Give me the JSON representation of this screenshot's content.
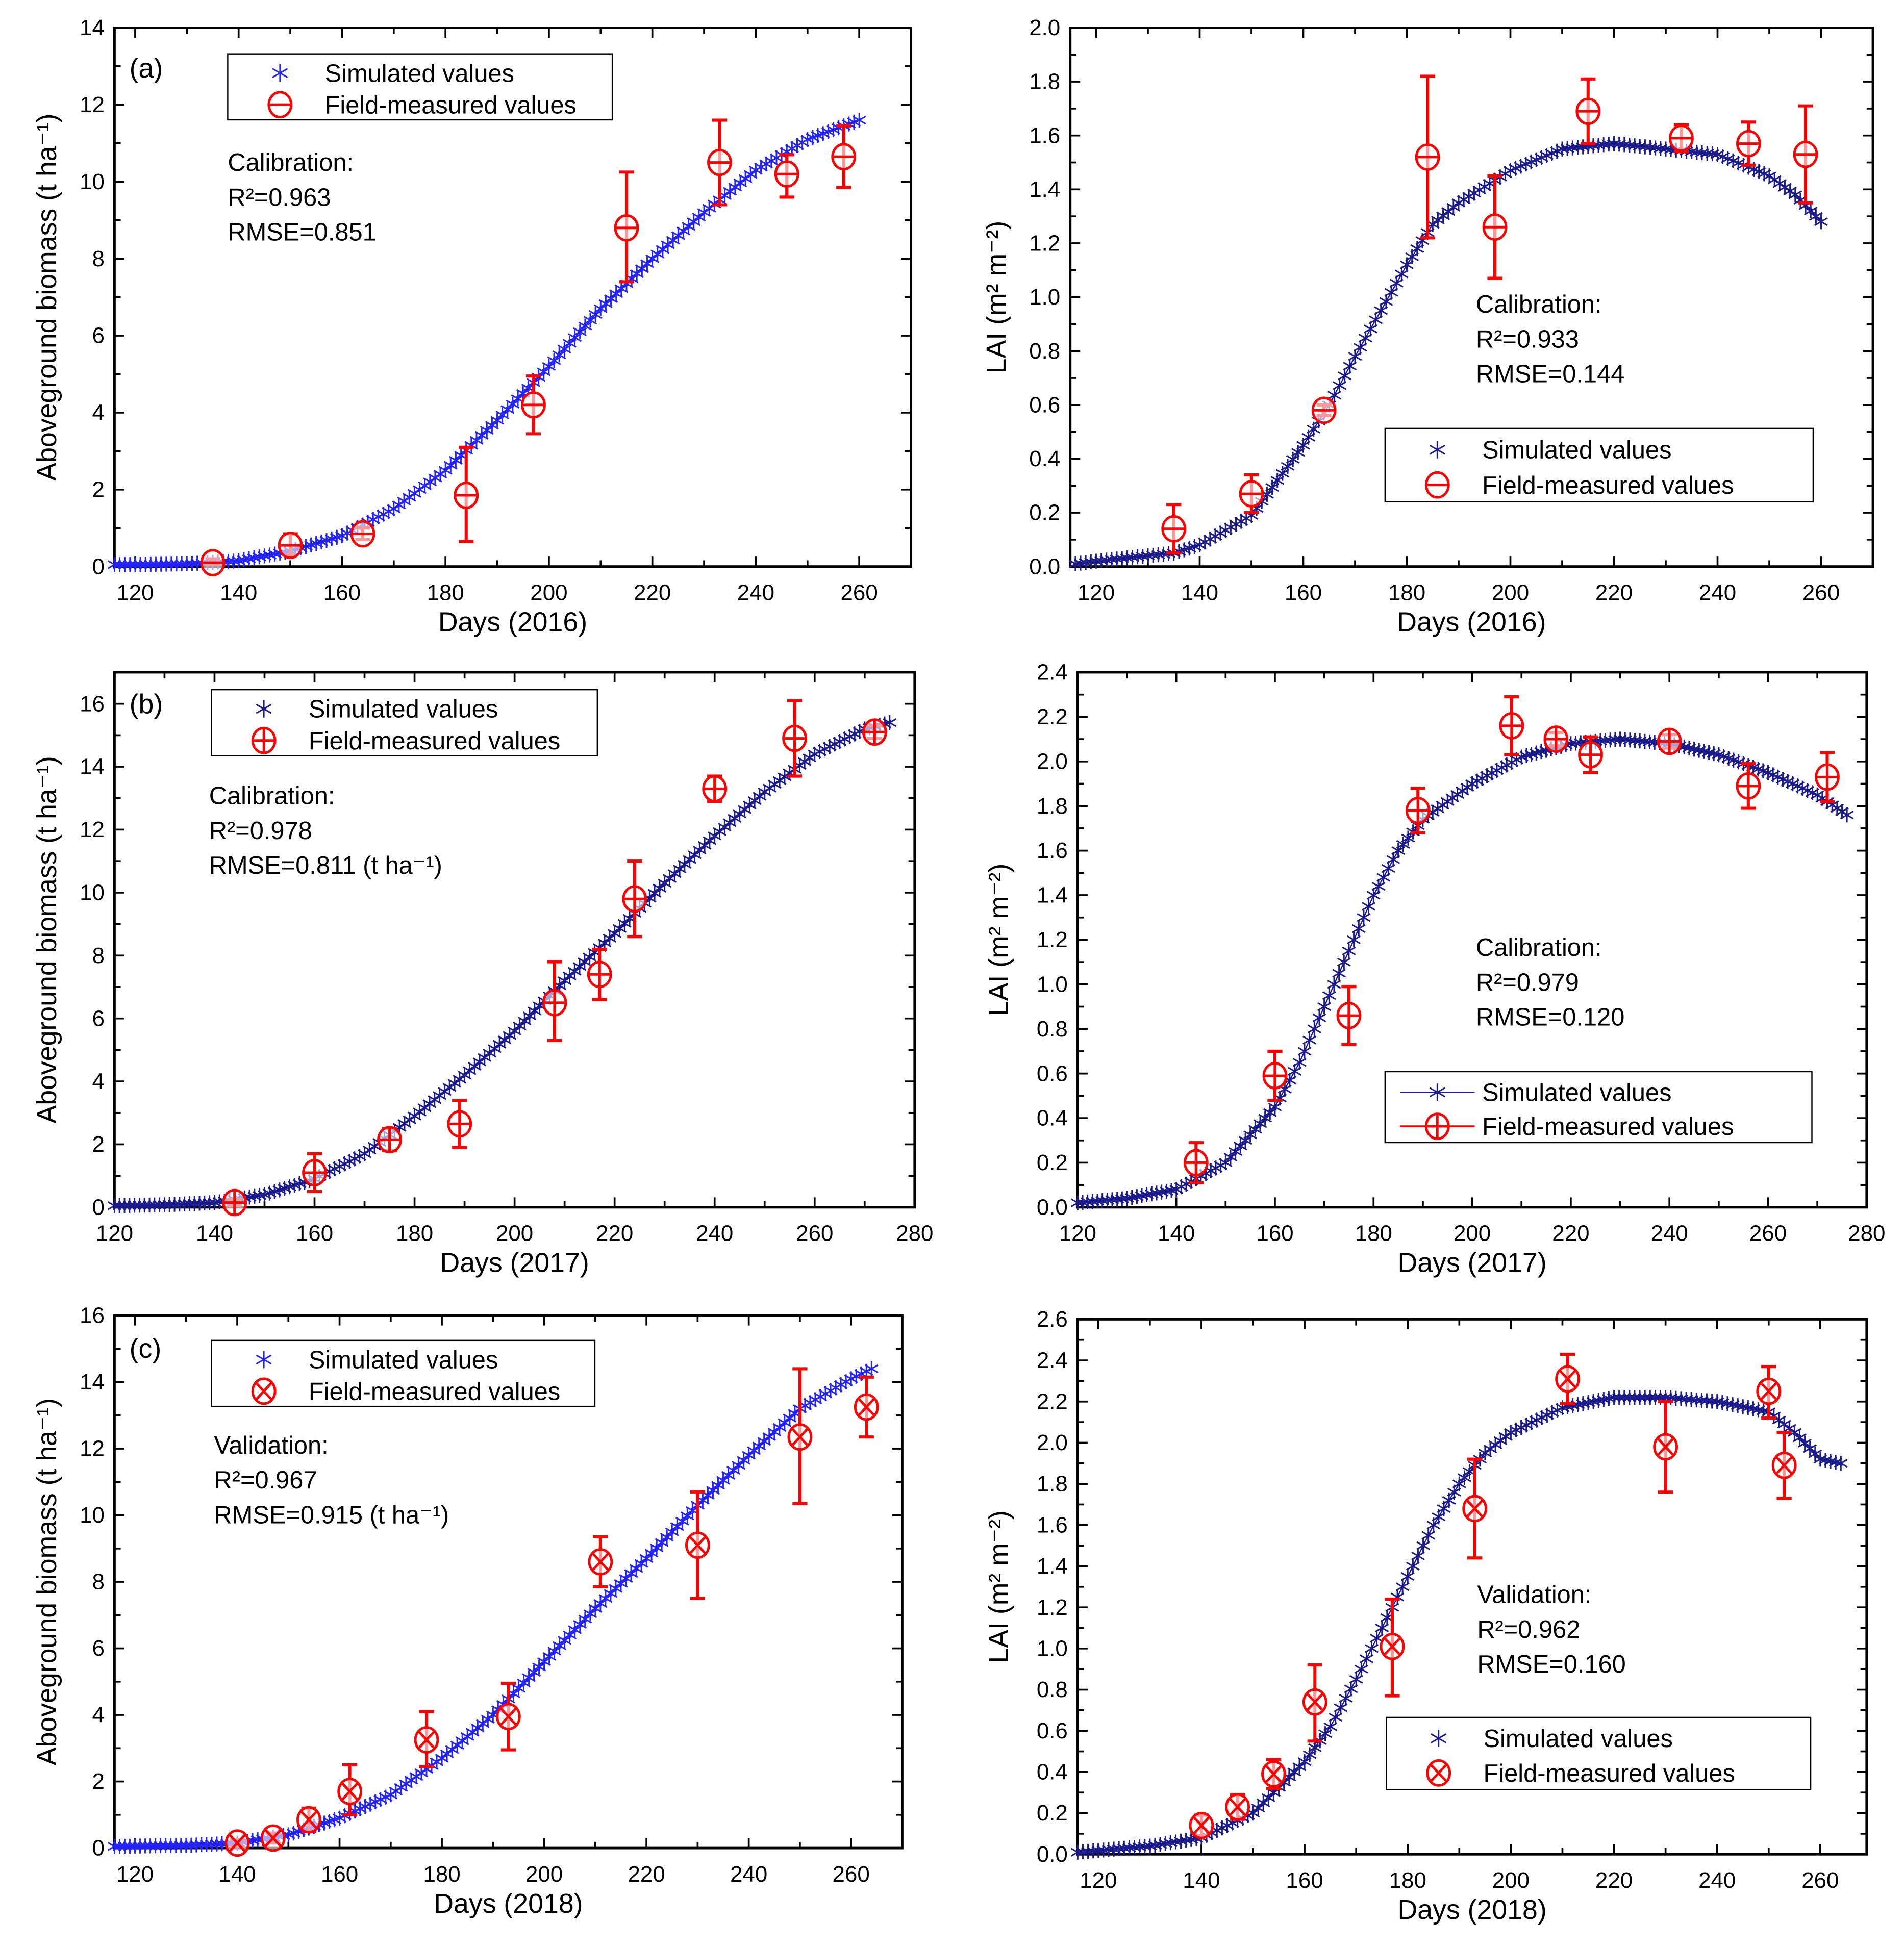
{
  "chart_data": [
    {
      "id": "a-biomass",
      "type": "scatter",
      "panel_label": "(a)",
      "xlabel": "Days (2016)",
      "ylabel": "Aboveground biomass (t ha⁻¹)",
      "xlim": [
        116,
        270
      ],
      "ylim": [
        0,
        14
      ],
      "x_ticks": [
        120,
        140,
        160,
        180,
        200,
        220,
        240,
        260
      ],
      "y_ticks": [
        0,
        2,
        4,
        6,
        8,
        10,
        12,
        14
      ],
      "y_decimals": 0,
      "marker": "circle-hline",
      "sim_color": "#2222ff",
      "obs_color": "#ff0000",
      "legend_line": false,
      "legend_position": "top-left",
      "legend": [
        "Simulated values",
        "Field-measured values"
      ],
      "annotation": [
        "Calibration:",
        "R²=0.963",
        "RMSE=0.851"
      ],
      "simulated": {
        "x": [
          116,
          120,
          130,
          140,
          150,
          160,
          170,
          180,
          190,
          200,
          210,
          220,
          230,
          240,
          250,
          260
        ],
        "y": [
          0.05,
          0.05,
          0.07,
          0.15,
          0.4,
          0.8,
          1.5,
          2.5,
          3.8,
          5.2,
          6.7,
          8.0,
          9.2,
          10.3,
          11.1,
          11.6
        ]
      },
      "measured": {
        "x": [
          135,
          150,
          164,
          184,
          197,
          215,
          233,
          246,
          257
        ],
        "y": [
          0.1,
          0.55,
          0.85,
          1.85,
          4.2,
          8.8,
          10.5,
          10.2,
          10.65
        ],
        "lo": [
          0.05,
          0.3,
          0.7,
          0.65,
          3.45,
          7.4,
          9.4,
          9.6,
          9.85
        ],
        "hi": [
          0.2,
          0.85,
          1.0,
          3.1,
          4.95,
          10.25,
          11.6,
          10.7,
          11.45
        ]
      }
    },
    {
      "id": "a-lai",
      "type": "scatter",
      "panel_label": "",
      "xlabel": "Days (2016)",
      "ylabel": "LAI (m² m⁻²)",
      "xlim": [
        115,
        270
      ],
      "ylim": [
        0,
        2.0
      ],
      "x_ticks": [
        120,
        140,
        160,
        180,
        200,
        220,
        240,
        260
      ],
      "y_ticks": [
        0,
        0.2,
        0.4,
        0.6,
        0.8,
        1.0,
        1.2,
        1.4,
        1.6,
        1.8,
        2.0
      ],
      "y_decimals": 1,
      "marker": "circle-hline",
      "sim_color": "#1a1a8c",
      "obs_color": "#ff0000",
      "legend_line": false,
      "legend_position": "bottom-right",
      "legend": [
        "Simulated values",
        "Field-measured values"
      ],
      "annotation": [
        "Calibration:",
        "R²=0.933",
        "RMSE=0.144"
      ],
      "simulated": {
        "x": [
          116,
          120,
          130,
          135,
          140,
          150,
          160,
          165,
          170,
          175,
          180,
          185,
          190,
          200,
          210,
          220,
          230,
          240,
          250,
          255,
          260
        ],
        "y": [
          0.01,
          0.02,
          0.04,
          0.05,
          0.08,
          0.19,
          0.45,
          0.6,
          0.78,
          0.95,
          1.12,
          1.27,
          1.35,
          1.47,
          1.55,
          1.57,
          1.55,
          1.53,
          1.45,
          1.38,
          1.28
        ]
      },
      "measured": {
        "x": [
          135,
          150,
          164,
          184,
          197,
          215,
          233,
          246,
          257
        ],
        "y": [
          0.14,
          0.27,
          0.58,
          1.52,
          1.26,
          1.69,
          1.59,
          1.57,
          1.53
        ],
        "lo": [
          0.05,
          0.2,
          0.56,
          1.22,
          1.07,
          1.57,
          1.54,
          1.49,
          1.35
        ],
        "hi": [
          0.23,
          0.34,
          0.6,
          1.82,
          1.45,
          1.81,
          1.64,
          1.65,
          1.71
        ]
      }
    },
    {
      "id": "b-biomass",
      "type": "scatter",
      "panel_label": "(b)",
      "xlabel": "Days (2017)",
      "ylabel": "Aboveground biomass (t ha⁻¹)",
      "xlim": [
        120,
        280
      ],
      "ylim": [
        0,
        17
      ],
      "x_ticks": [
        120,
        140,
        160,
        180,
        200,
        220,
        240,
        260,
        280
      ],
      "y_ticks": [
        0,
        2,
        4,
        6,
        8,
        10,
        12,
        14,
        16
      ],
      "y_decimals": 0,
      "marker": "circle-cross",
      "sim_color": "#1a1a8c",
      "obs_color": "#ff0000",
      "legend_line": false,
      "legend_position": "top-left",
      "legend": [
        "Simulated values",
        "Field-measured values"
      ],
      "annotation": [
        "Calibration:",
        "R²=0.978",
        "RMSE=0.811 (t ha⁻¹)"
      ],
      "simulated": {
        "x": [
          120,
          130,
          140,
          150,
          160,
          170,
          180,
          190,
          200,
          210,
          220,
          230,
          240,
          250,
          260,
          270,
          275
        ],
        "y": [
          0.05,
          0.08,
          0.15,
          0.4,
          0.9,
          1.7,
          2.9,
          4.2,
          5.6,
          7.2,
          8.7,
          10.3,
          11.8,
          13.2,
          14.4,
          15.2,
          15.4
        ]
      },
      "measured": {
        "x": [
          144,
          160,
          175,
          189,
          208,
          217,
          224,
          240,
          256,
          272
        ],
        "y": [
          0.15,
          1.1,
          2.15,
          2.65,
          6.5,
          7.4,
          9.8,
          13.3,
          14.9,
          15.1
        ],
        "lo": [
          0.05,
          0.5,
          1.8,
          1.9,
          5.3,
          6.6,
          8.6,
          12.9,
          13.7,
          14.9
        ],
        "hi": [
          0.25,
          1.7,
          2.5,
          3.4,
          7.8,
          8.2,
          11.0,
          13.7,
          16.1,
          15.3
        ]
      }
    },
    {
      "id": "b-lai",
      "type": "scatter",
      "panel_label": "",
      "xlabel": "Days (2017)",
      "ylabel": "LAI (m² m⁻²)",
      "xlim": [
        120,
        280
      ],
      "ylim": [
        0,
        2.4
      ],
      "x_ticks": [
        120,
        140,
        160,
        180,
        200,
        220,
        240,
        260,
        280
      ],
      "y_ticks": [
        0,
        0.2,
        0.4,
        0.6,
        0.8,
        1.0,
        1.2,
        1.4,
        1.6,
        1.8,
        2.0,
        2.2,
        2.4
      ],
      "y_decimals": 1,
      "marker": "circle-cross",
      "sim_color": "#1a1a8c",
      "obs_color": "#ff0000",
      "legend_line": true,
      "legend_position": "bottom-right",
      "legend": [
        "Simulated values",
        "Field-measured values"
      ],
      "annotation": [
        "Calibration:",
        "R²=0.979",
        "RMSE=0.120"
      ],
      "simulated": {
        "x": [
          120,
          130,
          140,
          150,
          160,
          165,
          170,
          175,
          180,
          185,
          190,
          200,
          210,
          220,
          230,
          240,
          250,
          260,
          270,
          276
        ],
        "y": [
          0.02,
          0.04,
          0.08,
          0.2,
          0.45,
          0.65,
          0.9,
          1.15,
          1.4,
          1.6,
          1.74,
          1.9,
          2.02,
          2.08,
          2.1,
          2.08,
          2.03,
          1.95,
          1.85,
          1.76
        ]
      },
      "measured": {
        "x": [
          144,
          160,
          175,
          189,
          208,
          217,
          224,
          240,
          256,
          272
        ],
        "y": [
          0.2,
          0.59,
          0.86,
          1.78,
          2.16,
          2.1,
          2.03,
          2.09,
          1.89,
          1.93
        ],
        "lo": [
          0.11,
          0.48,
          0.73,
          1.68,
          2.03,
          2.07,
          1.95,
          2.06,
          1.79,
          1.82
        ],
        "hi": [
          0.29,
          0.7,
          0.99,
          1.88,
          2.29,
          2.13,
          2.11,
          2.12,
          1.99,
          2.04
        ]
      }
    },
    {
      "id": "c-biomass",
      "type": "scatter",
      "panel_label": "(c)",
      "xlabel": "Days (2018)",
      "ylabel": "Aboveground biomass (t ha⁻¹)",
      "xlim": [
        116,
        270
      ],
      "ylim": [
        0,
        16
      ],
      "x_ticks": [
        120,
        140,
        160,
        180,
        200,
        220,
        240,
        260
      ],
      "y_ticks": [
        0,
        2,
        4,
        6,
        8,
        10,
        12,
        14,
        16
      ],
      "y_decimals": 0,
      "marker": "circle-x",
      "sim_color": "#2222ff",
      "obs_color": "#ff0000",
      "legend_line": false,
      "legend_position": "top-left",
      "legend": [
        "Simulated values",
        "Field-measured values"
      ],
      "annotation": [
        "Validation:",
        "R²=0.967",
        "RMSE=0.915 (t ha⁻¹)"
      ],
      "simulated": {
        "x": [
          116,
          130,
          140,
          150,
          160,
          170,
          180,
          190,
          200,
          210,
          220,
          230,
          240,
          250,
          260,
          264
        ],
        "y": [
          0.05,
          0.08,
          0.15,
          0.4,
          0.9,
          1.6,
          2.7,
          4.0,
          5.6,
          7.2,
          8.7,
          10.3,
          11.8,
          13.2,
          14.1,
          14.4
        ]
      },
      "measured": {
        "x": [
          140,
          147,
          154,
          162,
          177,
          193,
          211,
          230,
          250,
          263
        ],
        "y": [
          0.15,
          0.3,
          0.85,
          1.7,
          3.25,
          3.95,
          8.6,
          9.1,
          12.35,
          13.25
        ],
        "lo": [
          0.05,
          0.15,
          0.5,
          1.0,
          2.45,
          2.95,
          7.85,
          7.5,
          10.35,
          12.35
        ],
        "hi": [
          0.25,
          0.45,
          1.2,
          2.5,
          4.1,
          4.95,
          9.35,
          10.7,
          14.4,
          14.15
        ]
      }
    },
    {
      "id": "c-lai",
      "type": "scatter",
      "panel_label": "",
      "xlabel": "Days (2018)",
      "ylabel": "LAI (m² m⁻²)",
      "xlim": [
        116,
        269
      ],
      "ylim": [
        0,
        2.6
      ],
      "x_ticks": [
        120,
        140,
        160,
        180,
        200,
        220,
        240,
        260
      ],
      "y_ticks": [
        0,
        0.2,
        0.4,
        0.6,
        0.8,
        1.0,
        1.2,
        1.4,
        1.6,
        1.8,
        2.0,
        2.2,
        2.4,
        2.6
      ],
      "y_decimals": 1,
      "marker": "circle-x",
      "sim_color": "#1a1a8c",
      "obs_color": "#ff0000",
      "legend_line": false,
      "legend_position": "bottom-right",
      "legend": [
        "Simulated values",
        "Field-measured values"
      ],
      "annotation": [
        "Validation:",
        "R²=0.962",
        "RMSE=0.160"
      ],
      "simulated": {
        "x": [
          116,
          130,
          140,
          150,
          160,
          165,
          170,
          175,
          180,
          185,
          190,
          195,
          200,
          210,
          220,
          230,
          240,
          250,
          255,
          260,
          264
        ],
        "y": [
          0.01,
          0.04,
          0.08,
          0.2,
          0.45,
          0.62,
          0.85,
          1.1,
          1.35,
          1.6,
          1.8,
          1.95,
          2.05,
          2.17,
          2.22,
          2.22,
          2.2,
          2.15,
          2.05,
          1.92,
          1.9
        ]
      },
      "measured": {
        "x": [
          140,
          147,
          154,
          162,
          177,
          193,
          211,
          230,
          250,
          253
        ],
        "y": [
          0.14,
          0.23,
          0.39,
          0.74,
          1.01,
          1.68,
          2.31,
          1.98,
          2.25,
          1.89
        ],
        "lo": [
          0.09,
          0.17,
          0.32,
          0.55,
          0.77,
          1.44,
          2.19,
          1.76,
          2.12,
          1.73
        ],
        "hi": [
          0.19,
          0.29,
          0.46,
          0.92,
          1.24,
          1.92,
          2.43,
          2.2,
          2.37,
          2.05
        ]
      }
    }
  ]
}
